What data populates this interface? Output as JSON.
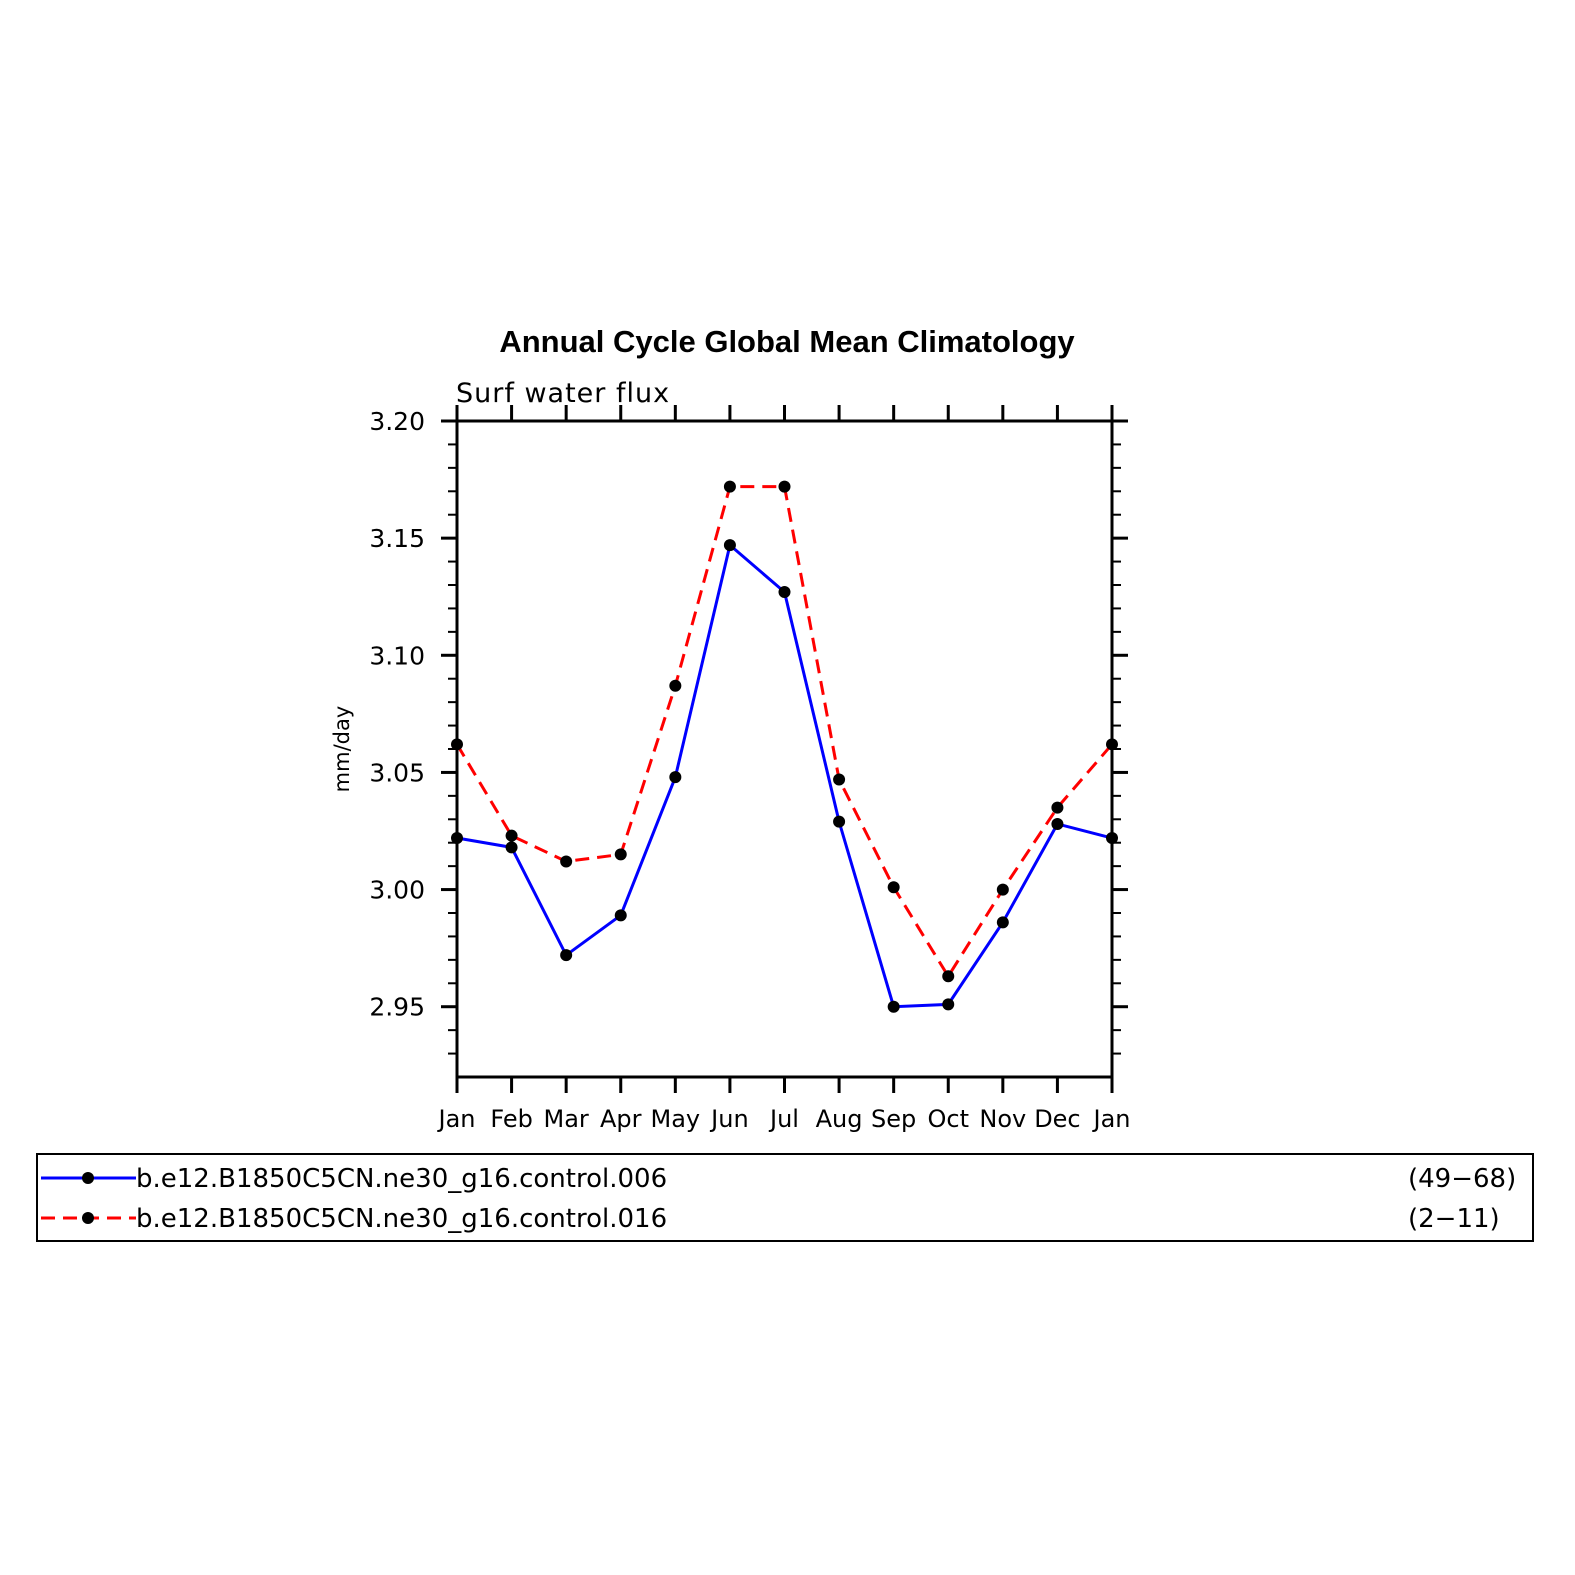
{
  "chart_data": {
    "type": "line",
    "title": "Annual Cycle Global Mean Climatology",
    "subtitle": "Surf water flux",
    "ylabel": "mm/day",
    "xlabel": "",
    "categories": [
      "Jan",
      "Feb",
      "Mar",
      "Apr",
      "May",
      "Jun",
      "Jul",
      "Aug",
      "Sep",
      "Oct",
      "Nov",
      "Dec",
      "Jan"
    ],
    "ylim": [
      2.92,
      3.2
    ],
    "yticks": [
      "3.20",
      "3.15",
      "3.10",
      "3.05",
      "3.00",
      "2.95"
    ],
    "ytick_values": [
      3.2,
      3.15,
      3.1,
      3.05,
      3.0,
      2.95
    ],
    "grid": false,
    "legend_position": "bottom",
    "series": [
      {
        "name": "b.e12.B1850C5CN.ne30_g16.control.006",
        "years": "(49−68)",
        "color": "#0000ff",
        "dash": "solid",
        "marker": "filled-circle",
        "values": [
          3.022,
          3.018,
          2.972,
          2.989,
          3.048,
          3.147,
          3.127,
          3.029,
          2.95,
          2.951,
          2.986,
          3.028,
          3.022
        ]
      },
      {
        "name": "b.e12.B1850C5CN.ne30_g16.control.016",
        "years": "(2−11)",
        "color": "#ff0000",
        "dash": "dashed",
        "marker": "filled-circle",
        "values": [
          3.062,
          3.023,
          3.012,
          3.015,
          3.087,
          3.172,
          3.172,
          3.047,
          3.001,
          2.963,
          3.0,
          3.035,
          3.062
        ]
      }
    ]
  }
}
